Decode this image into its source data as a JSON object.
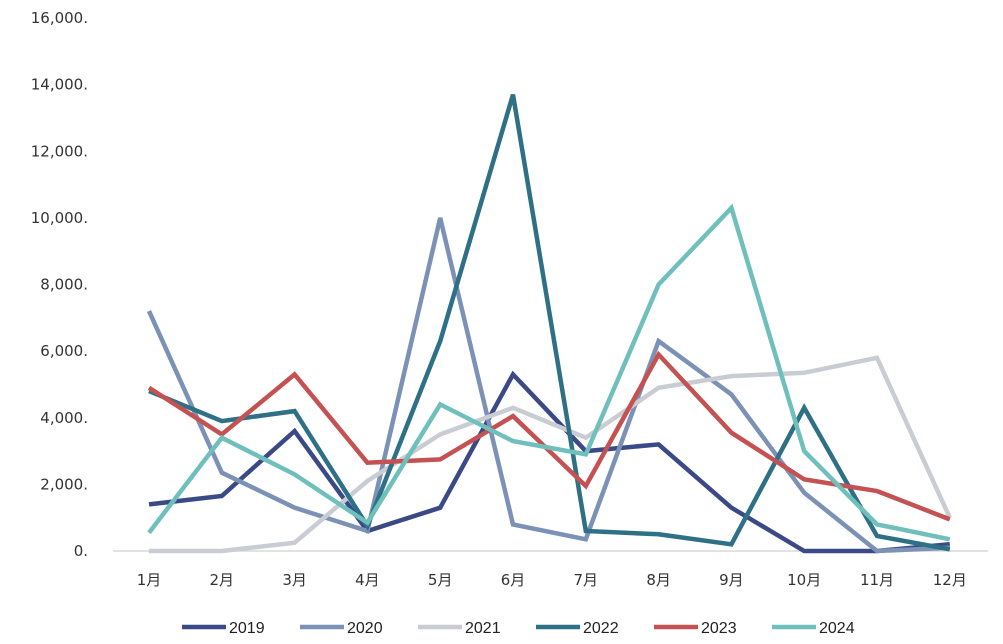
{
  "chart_data": {
    "type": "line",
    "categories": [
      "1月",
      "2月",
      "3月",
      "4月",
      "5月",
      "6月",
      "7月",
      "8月",
      "9月",
      "10月",
      "11月",
      "12月"
    ],
    "y_ticks": [
      "0.",
      "2,000.",
      "4,000.",
      "6,000.",
      "8,000.",
      "10,000.",
      "12,000.",
      "14,000.",
      "16,000."
    ],
    "ylim": [
      0,
      16000
    ],
    "grid": false,
    "legend_position": "bottom",
    "series": [
      {
        "name": "2019",
        "color": "#3b4a86",
        "values": [
          1400,
          1650,
          3600,
          600,
          1300,
          5300,
          3000,
          3200,
          1300,
          0,
          0,
          200
        ]
      },
      {
        "name": "2020",
        "color": "#7b91b6",
        "values": [
          7200,
          2350,
          1300,
          600,
          10000,
          800,
          350,
          6300,
          4700,
          1750,
          0,
          100
        ]
      },
      {
        "name": "2021",
        "color": "#c9cdd3",
        "values": [
          0,
          0,
          250,
          2100,
          3500,
          4300,
          3400,
          4900,
          5250,
          5350,
          5800,
          1000
        ]
      },
      {
        "name": "2022",
        "color": "#2e7085",
        "values": [
          4800,
          3900,
          4200,
          750,
          6300,
          13700,
          600,
          500,
          200,
          4300,
          450,
          50
        ]
      },
      {
        "name": "2023",
        "color": "#c45252",
        "values": [
          4900,
          3500,
          5300,
          2650,
          2750,
          4050,
          1950,
          5900,
          3550,
          2150,
          1800,
          950
        ]
      },
      {
        "name": "2024",
        "color": "#6fc0bd",
        "values": [
          550,
          3400,
          2300,
          850,
          4400,
          3300,
          2900,
          8000,
          10300,
          3000,
          800,
          350
        ]
      }
    ]
  }
}
